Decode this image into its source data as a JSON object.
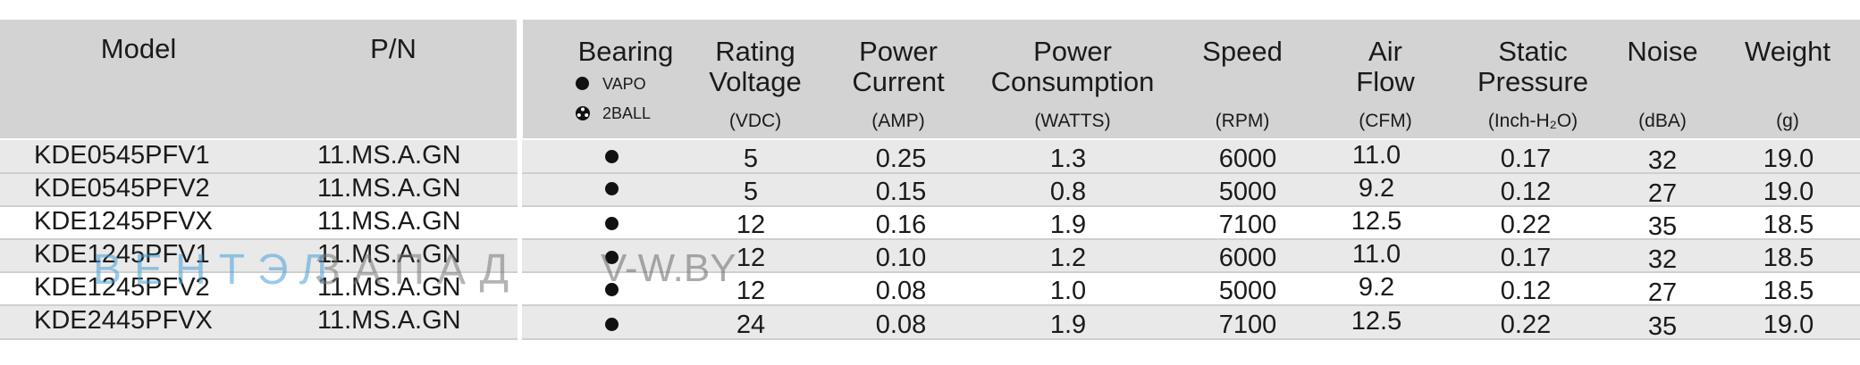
{
  "headers": {
    "model": "Model",
    "pn": "P/N",
    "bearing": "Bearing",
    "bearing_legend": [
      {
        "icon": "filled-circle-icon",
        "label": "VAPO"
      },
      {
        "icon": "ball-bearing-icon",
        "label": "2BALL"
      }
    ],
    "rating_voltage": {
      "line1": "Rating",
      "line2": "Voltage",
      "unit": "(VDC)"
    },
    "power_current": {
      "line1": "Power",
      "line2": "Current",
      "unit": "(AMP)"
    },
    "power_consumption": {
      "line1": "Power",
      "line2": "Consumption",
      "unit": "(WATTS)"
    },
    "speed": {
      "line1": "Speed",
      "unit": "(RPM)"
    },
    "air_flow": {
      "line1": "Air",
      "line2": "Flow",
      "unit": "(CFM)"
    },
    "static_pressure": {
      "line1": "Static",
      "line2": "Pressure",
      "unit": "(Inch-H₂O)"
    },
    "noise": {
      "line1": "Noise",
      "unit": "(dBA)"
    },
    "weight": {
      "line1": "Weight",
      "unit": "(g)"
    }
  },
  "rows": [
    {
      "model": "KDE0545PFV1",
      "pn": "11.MS.A.GN",
      "bearing": "VAPO",
      "voltage": "5",
      "current": "0.25",
      "power": "1.3",
      "speed": "6000",
      "airflow": "11.0",
      "pressure": "0.17",
      "noise": "32",
      "weight": "19.0"
    },
    {
      "model": "KDE0545PFV2",
      "pn": "11.MS.A.GN",
      "bearing": "VAPO",
      "voltage": "5",
      "current": "0.15",
      "power": "0.8",
      "speed": "5000",
      "airflow": "9.2",
      "pressure": "0.12",
      "noise": "27",
      "weight": "19.0"
    },
    {
      "model": "KDE1245PFVX",
      "pn": "11.MS.A.GN",
      "bearing": "VAPO",
      "voltage": "12",
      "current": "0.16",
      "power": "1.9",
      "speed": "7100",
      "airflow": "12.5",
      "pressure": "0.22",
      "noise": "35",
      "weight": "18.5"
    },
    {
      "model": "KDE1245PFV1",
      "pn": "11.MS.A.GN",
      "bearing": "VAPO",
      "voltage": "12",
      "current": "0.10",
      "power": "1.2",
      "speed": "6000",
      "airflow": "11.0",
      "pressure": "0.17",
      "noise": "32",
      "weight": "18.5"
    },
    {
      "model": "KDE1245PFV2",
      "pn": "11.MS.A.GN",
      "bearing": "VAPO",
      "voltage": "12",
      "current": "0.08",
      "power": "1.0",
      "speed": "5000",
      "airflow": "9.2",
      "pressure": "0.12",
      "noise": "27",
      "weight": "18.5"
    },
    {
      "model": "KDE2445PFVX",
      "pn": "11.MS.A.GN",
      "bearing": "VAPO",
      "voltage": "24",
      "current": "0.08",
      "power": "1.9",
      "speed": "7100",
      "airflow": "12.5",
      "pressure": "0.22",
      "noise": "35",
      "weight": "19.0"
    }
  ],
  "watermark": {
    "part1": "ВЕНТЭЛ",
    "part2": "ЗАПАД",
    "url": "V-W.BY"
  },
  "colors": {
    "header_bg": "#d3d3d3",
    "row_alt_bg": "#e9e9e9",
    "watermark_blue": "#4aa0d8"
  }
}
